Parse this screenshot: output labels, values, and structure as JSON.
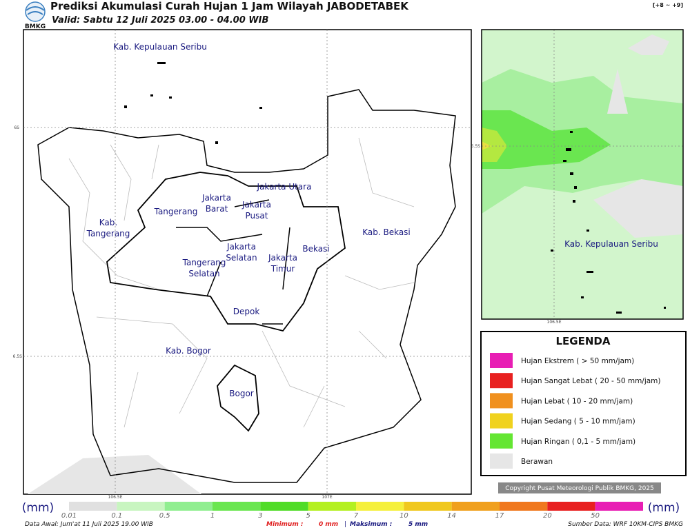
{
  "header": {
    "logo": "BMKG",
    "title": "Prediksi Akumulasi Curah Hujan 1 Jam Wilayah JABODETABEK",
    "valid": "Valid: Sabtu 12 Juli 2025 03.00 - 04.00 WIB",
    "badge": "[+8 ~ +9]"
  },
  "main_map": {
    "labels": [
      {
        "lines": [
          "Kab. Kepulauan Seribu"
        ]
      },
      {
        "lines": [
          "Jakarta Utara"
        ]
      },
      {
        "lines": [
          "Jakarta",
          "Barat"
        ]
      },
      {
        "lines": [
          "Jakarta",
          "Pusat"
        ]
      },
      {
        "lines": [
          "Tangerang"
        ]
      },
      {
        "lines": [
          "Kab.",
          "Tangerang"
        ]
      },
      {
        "lines": [
          "Jakarta",
          "Selatan"
        ]
      },
      {
        "lines": [
          "Jakarta",
          "Timur"
        ]
      },
      {
        "lines": [
          "Bekasi"
        ]
      },
      {
        "lines": [
          "Kab. Bekasi"
        ]
      },
      {
        "lines": [
          "Tangerang",
          "Selatan"
        ]
      },
      {
        "lines": [
          "Depok"
        ]
      },
      {
        "lines": [
          "Kab. Bogor"
        ]
      },
      {
        "lines": [
          "Bogor"
        ]
      }
    ],
    "lat_labels": [
      "6S",
      "6.5S"
    ],
    "lon_labels": [
      "106.5E",
      "107E"
    ]
  },
  "inset_map": {
    "label": "Kab. Kepulauan Seribu",
    "lat_label": "5.5S",
    "lon_label": "106.5E"
  },
  "legend": {
    "title": "LEGENDA",
    "items": [
      {
        "label": "Hujan Ekstrem ( > 50 mm/jam)",
        "color": "#e81eb4"
      },
      {
        "label": "Hujan Sangat Lebat ( 20 - 50 mm/jam)",
        "color": "#e82020"
      },
      {
        "label": "Hujan Lebat ( 10 - 20 mm/jam)",
        "color": "#f0901e"
      },
      {
        "label": "Hujan Sedang ( 5 - 10 mm/jam)",
        "color": "#f0d21e"
      },
      {
        "label": "Hujan Ringan ( 0,1 - 5 mm/jam)",
        "color": "#64e632"
      },
      {
        "label": "Berawan",
        "color": "#e6e6e6"
      }
    ]
  },
  "copyright": "Copyright Pusat Meteorologi Publik BMKG, 2025",
  "colorbar": {
    "unit": "(mm)",
    "steps": [
      {
        "label": "0.01",
        "color": "#e0e0e0"
      },
      {
        "label": "0.1",
        "color": "#c8f5c0"
      },
      {
        "label": "0.5",
        "color": "#90ee90"
      },
      {
        "label": "1",
        "color": "#6ae650"
      },
      {
        "label": "3",
        "color": "#50dc28"
      },
      {
        "label": "5",
        "color": "#b4f020"
      },
      {
        "label": "7",
        "color": "#f5f03c"
      },
      {
        "label": "10",
        "color": "#f0c81e"
      },
      {
        "label": "14",
        "color": "#f0a01e"
      },
      {
        "label": "17",
        "color": "#f0781e"
      },
      {
        "label": "20",
        "color": "#e82020"
      },
      {
        "label": "50",
        "color": "#e81eb4"
      }
    ]
  },
  "footer": {
    "data_awal": "Data Awal: Jum'at 11 Juli 2025 19.00 WIB",
    "minimum_label": "Minimum :",
    "minimum": "0 mm",
    "separator": "|",
    "maksimum_label": "Maksimum :",
    "maksimum": "5 mm",
    "source": "Sumber Data: WRF 10KM-CIPS BMKG"
  }
}
